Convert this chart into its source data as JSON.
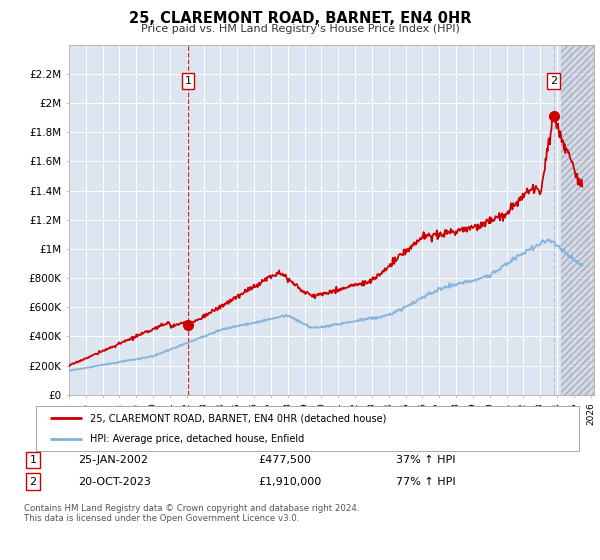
{
  "title": "25, CLAREMONT ROAD, BARNET, EN4 0HR",
  "subtitle": "Price paid vs. HM Land Registry's House Price Index (HPI)",
  "ylim": [
    0,
    2400000
  ],
  "yticks": [
    0,
    200000,
    400000,
    600000,
    800000,
    1000000,
    1200000,
    1400000,
    1600000,
    1800000,
    2000000,
    2200000
  ],
  "ytick_labels": [
    "£0",
    "£200K",
    "£400K",
    "£600K",
    "£800K",
    "£1M",
    "£1.2M",
    "£1.4M",
    "£1.6M",
    "£1.8M",
    "£2M",
    "£2.2M"
  ],
  "background_color": "#ffffff",
  "plot_bg_color": "#dde5f0",
  "grid_color": "#ffffff",
  "sale1_date_num": 2002.07,
  "sale1_label": "25-JAN-2002",
  "sale1_price": 477500,
  "sale1_hpi_text": "37% ↑ HPI",
  "sale2_date_num": 2023.8,
  "sale2_label": "20-OCT-2023",
  "sale2_price": 1910000,
  "sale2_hpi_text": "77% ↑ HPI",
  "legend_line1": "25, CLAREMONT ROAD, BARNET, EN4 0HR (detached house)",
  "legend_line2": "HPI: Average price, detached house, Enfield",
  "footer": "Contains HM Land Registry data © Crown copyright and database right 2024.\nThis data is licensed under the Open Government Licence v3.0.",
  "line_color": "#cc0000",
  "hpi_color": "#7fb0d8",
  "xmin": 1995.0,
  "xmax": 2026.2,
  "hatch_start": 2024.25
}
